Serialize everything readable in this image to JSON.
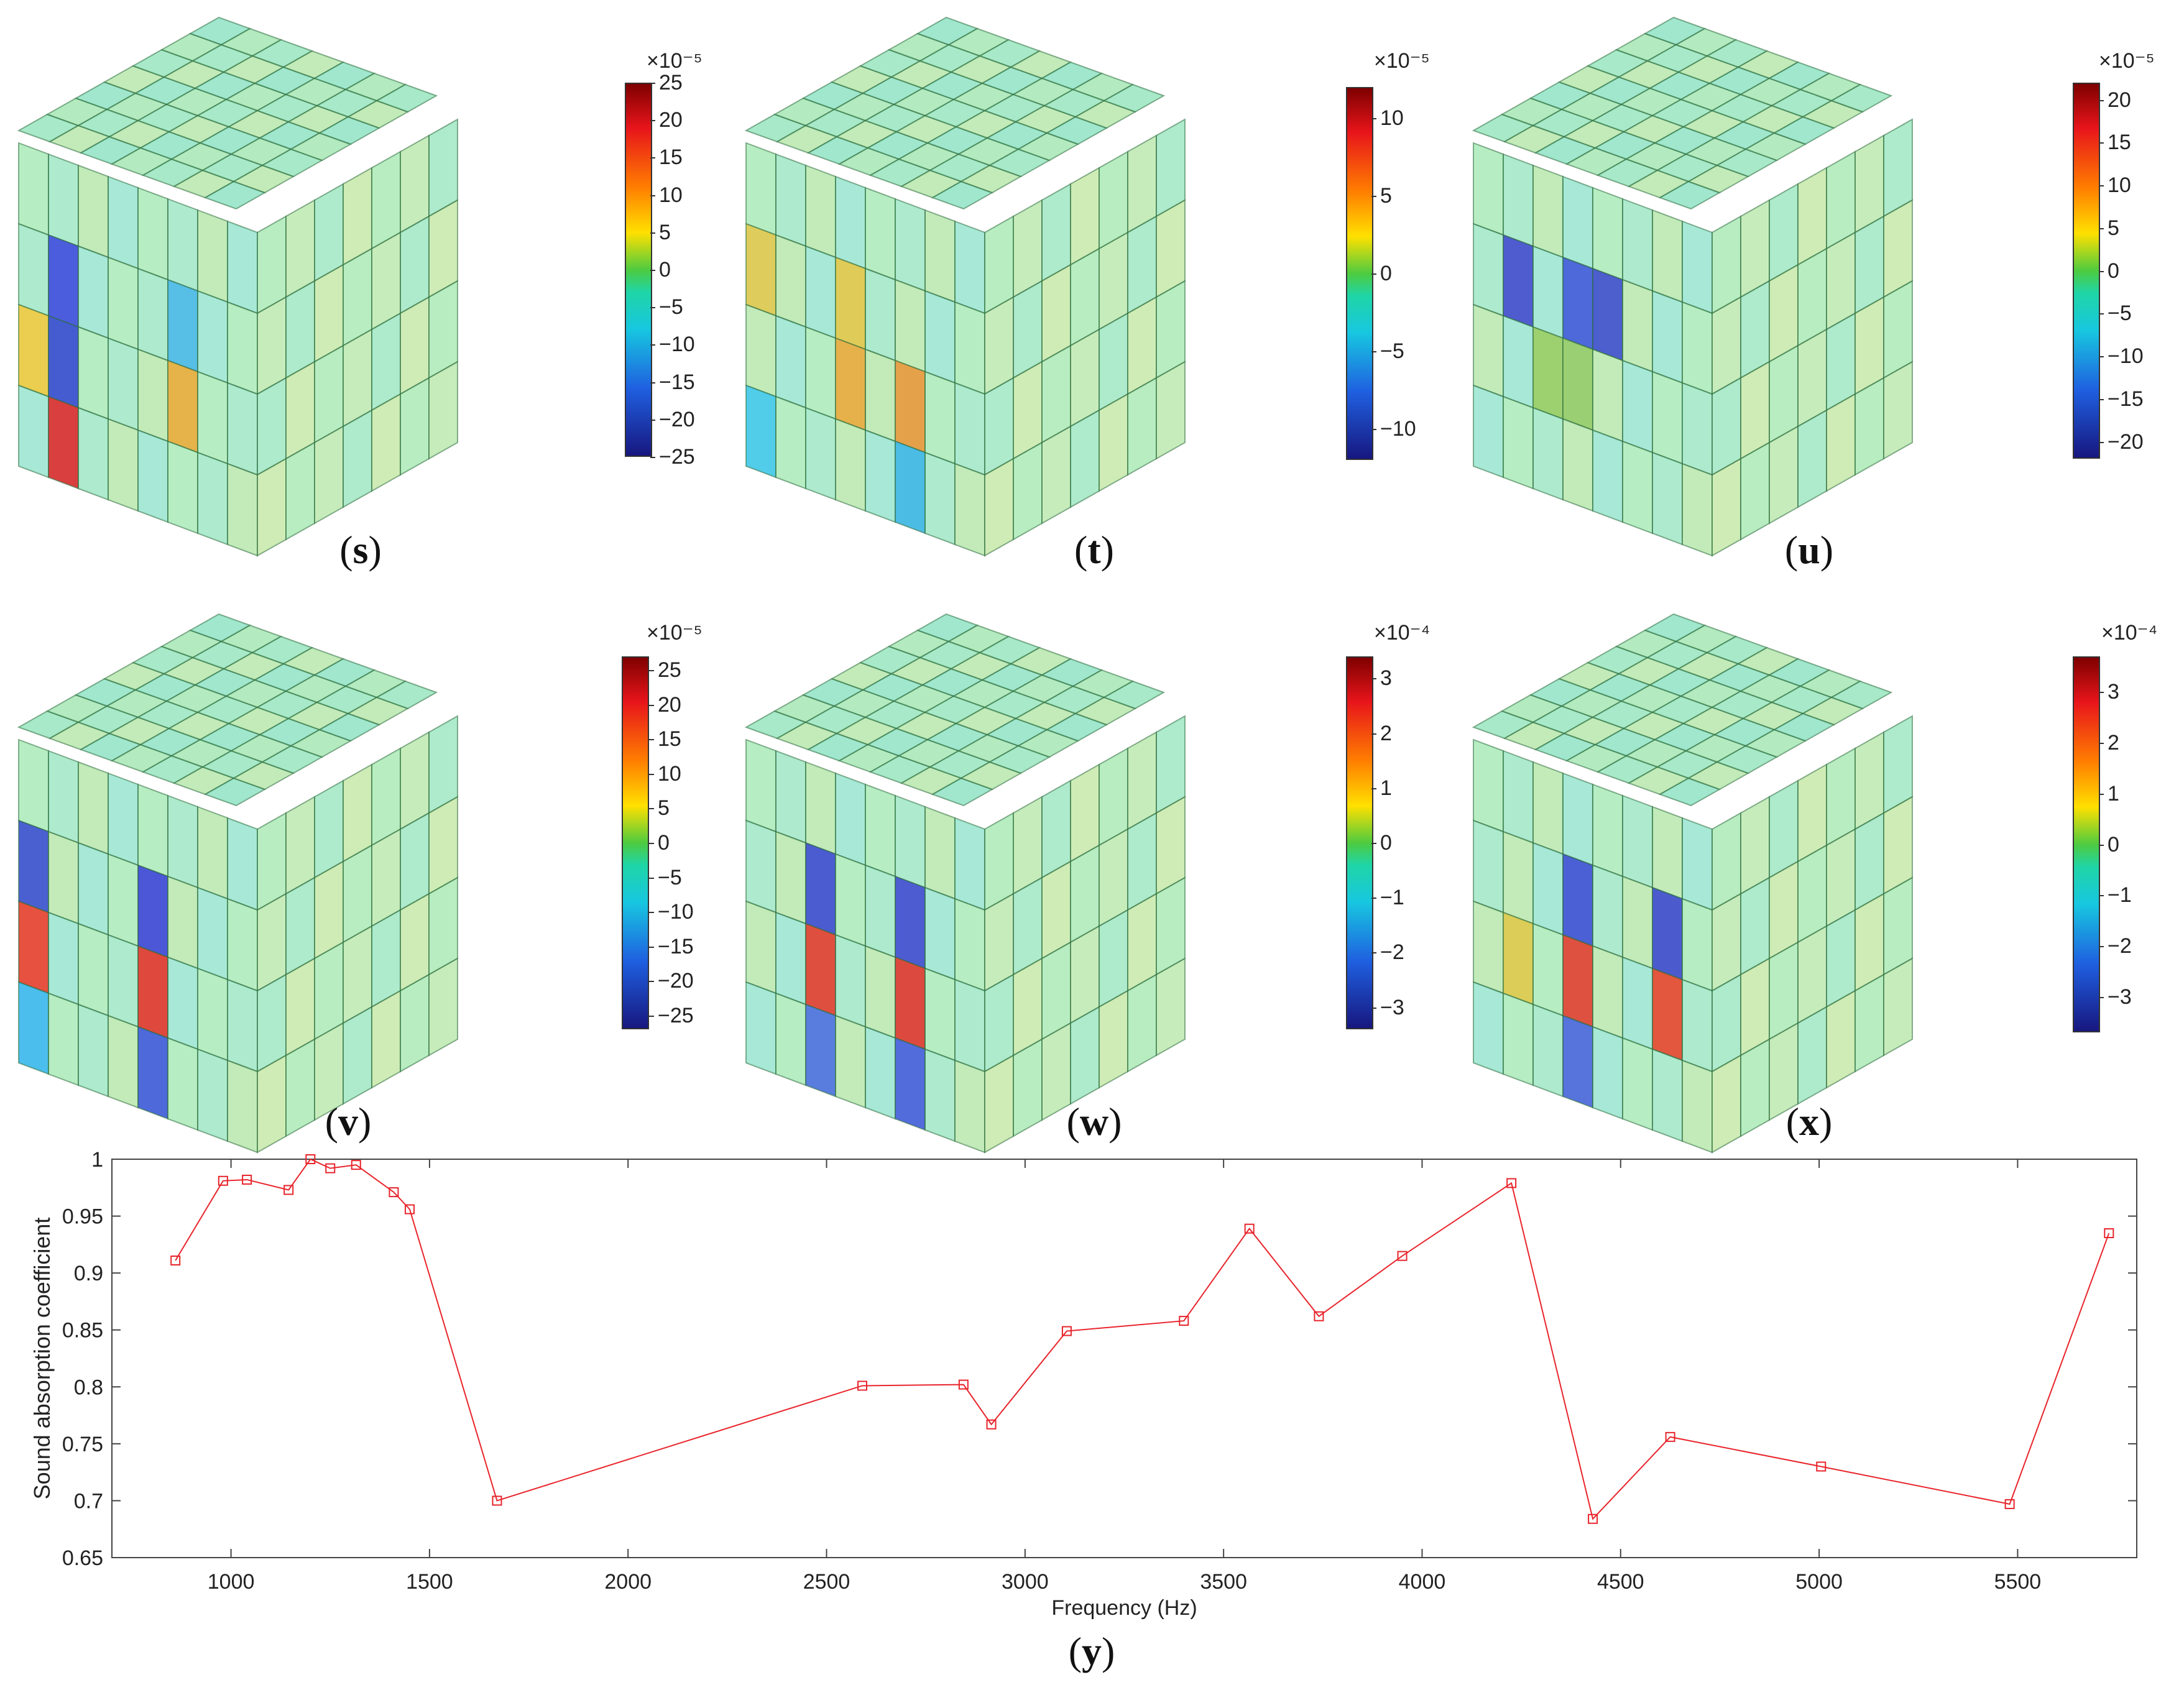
{
  "panels": [
    {
      "id": "s",
      "label": "s",
      "exponent": "×10⁻⁵",
      "ticks": [
        "25",
        "20",
        "15",
        "10",
        "5",
        "0",
        "−5",
        "−10",
        "−15",
        "−20",
        "−25"
      ],
      "range": [
        -25,
        25
      ]
    },
    {
      "id": "t",
      "label": "t",
      "exponent": "×10⁻⁵",
      "ticks": [
        "10",
        "5",
        "0",
        "−5",
        "−10"
      ],
      "range": [
        -12,
        12
      ]
    },
    {
      "id": "u",
      "label": "u",
      "exponent": "×10⁻⁵",
      "ticks": [
        "20",
        "15",
        "10",
        "5",
        "0",
        "−5",
        "−10",
        "−15",
        "−20"
      ],
      "range": [
        -22,
        22
      ]
    },
    {
      "id": "v",
      "label": "v",
      "exponent": "×10⁻⁵",
      "ticks": [
        "25",
        "20",
        "15",
        "10",
        "5",
        "0",
        "−5",
        "−10",
        "−15",
        "−20",
        "−25"
      ],
      "range": [
        -27,
        27
      ]
    },
    {
      "id": "w",
      "label": "w",
      "exponent": "×10⁻⁴",
      "ticks": [
        "3",
        "2",
        "1",
        "0",
        "−1",
        "−2",
        "−3"
      ],
      "range": [
        -3.4,
        3.4
      ]
    },
    {
      "id": "x",
      "label": "x",
      "exponent": "×10⁻⁴",
      "ticks": [
        "3",
        "2",
        "1",
        "0",
        "−1",
        "−2",
        "−3"
      ],
      "range": [
        -3.7,
        3.7
      ]
    }
  ],
  "chart_data": {
    "type": "line",
    "panel_label": "y",
    "xlabel": "Frequency (Hz)",
    "ylabel": "Sound absorption coefficient",
    "xlim": [
      700,
      5800
    ],
    "ylim": [
      0.65,
      1
    ],
    "xticks": [
      1000,
      1500,
      2000,
      2500,
      3000,
      3500,
      4000,
      4500,
      5000,
      5500
    ],
    "yticks": [
      0.65,
      0.7,
      0.75,
      0.8,
      0.85,
      0.9,
      0.95,
      1
    ],
    "ytick_labels": [
      "0.65",
      "0.7",
      "0.75",
      "0.8",
      "0.85",
      "0.9",
      "0.95",
      "1"
    ],
    "grid": false,
    "marker": "square",
    "color": "#e8242b",
    "series": [
      {
        "name": "Sound absorption coefficient",
        "x": [
          860,
          980,
          1040,
          1145,
          1200,
          1250,
          1315,
          1410,
          1450,
          1670,
          2590,
          2845,
          2915,
          3105,
          3400,
          3565,
          3740,
          3950,
          4225,
          4430,
          4625,
          5005,
          5480,
          5730
        ],
        "y": [
          0.911,
          0.981,
          0.982,
          0.973,
          1.0,
          0.992,
          0.995,
          0.971,
          0.956,
          0.7,
          0.801,
          0.802,
          0.767,
          0.849,
          0.858,
          0.939,
          0.862,
          0.915,
          0.979,
          0.684,
          0.756,
          0.73,
          0.697,
          0.935
        ]
      }
    ]
  }
}
